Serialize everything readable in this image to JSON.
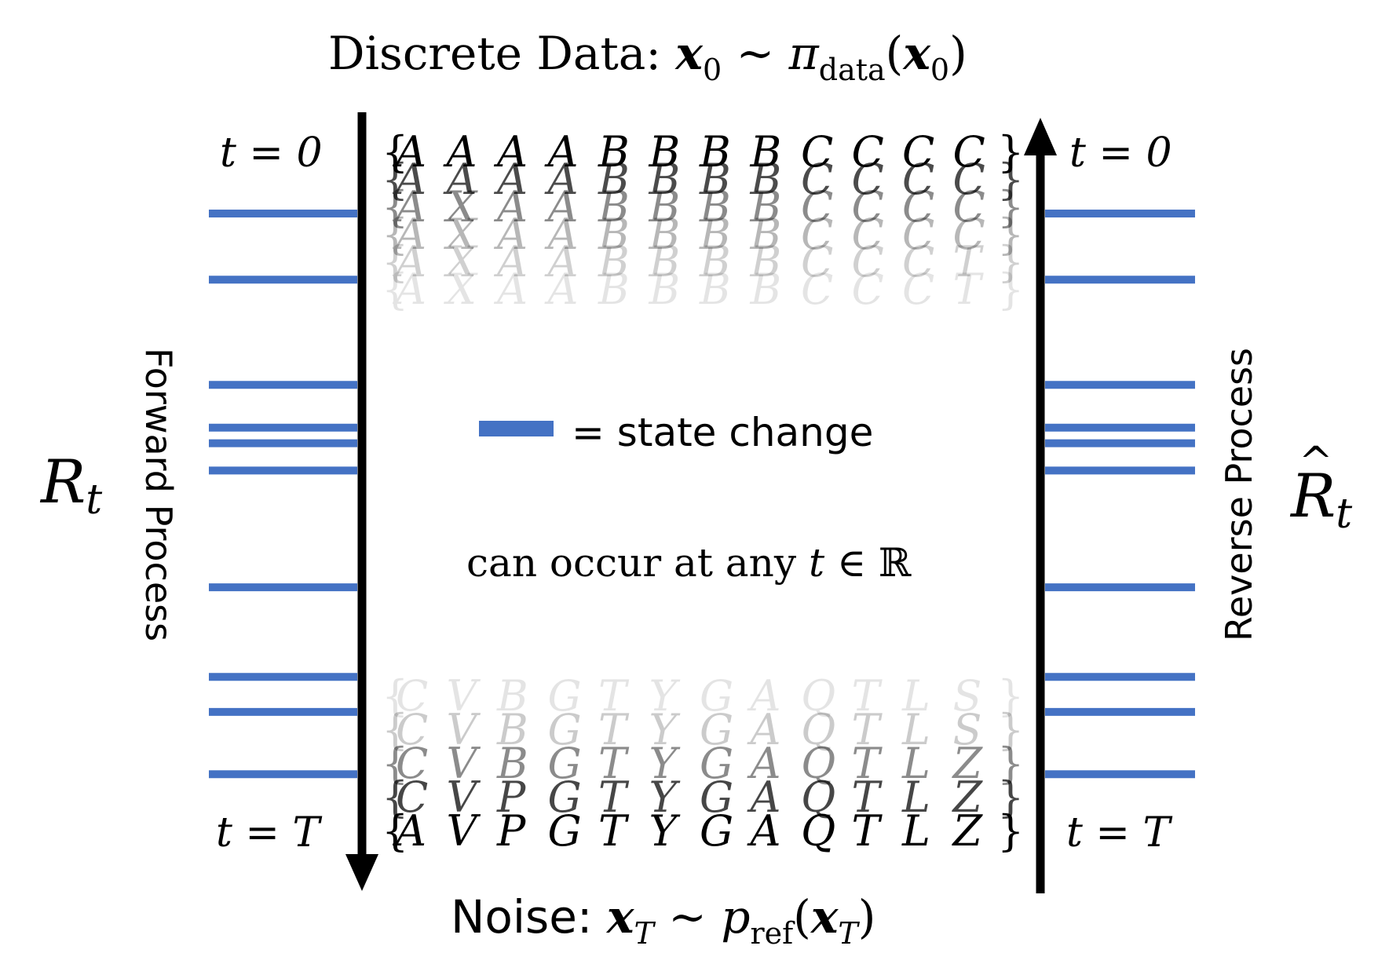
{
  "title": {
    "text": "Discrete Data: ",
    "x0": "x",
    "x0_sub": "0",
    "tilde": " ~ ",
    "pi": "π",
    "pi_sub": "data",
    "open": "(",
    "arg": "x",
    "arg_sub": "0",
    "close": ")"
  },
  "bottom_label": {
    "text": "Noise: ",
    "xT": "x",
    "xT_sub": "T",
    "tilde": " ~ ",
    "p": "p",
    "p_sub": "ref",
    "open": "(",
    "arg": "x",
    "arg_sub": "T",
    "close": ")"
  },
  "left": {
    "t0": "t = 0",
    "tT": "t = T",
    "rate": "R",
    "rate_sub": "t",
    "process": "Forward Process"
  },
  "right": {
    "t0": "t = 0",
    "tT": "t = T",
    "rate_hat": "^",
    "rate": "R",
    "rate_sub": "t",
    "process": "Reverse Process"
  },
  "legend": {
    "text": "= state change",
    "color": "#4472c4"
  },
  "caption": {
    "text": "can occur at any ",
    "t": "t",
    "rest": " ∈ ℝ"
  },
  "sequences_top": [
    {
      "letters": [
        "A",
        "A",
        "A",
        "A",
        "B",
        "B",
        "B",
        "B",
        "C",
        "C",
        "C",
        "C"
      ],
      "opacity": 1.0
    },
    {
      "letters": [
        "A",
        "A",
        "A",
        "A",
        "B",
        "B",
        "B",
        "B",
        "C",
        "C",
        "C",
        "C"
      ],
      "opacity": 0.7
    },
    {
      "letters": [
        "A",
        "X",
        "A",
        "A",
        "B",
        "B",
        "B",
        "B",
        "C",
        "C",
        "C",
        "C"
      ],
      "opacity": 0.45
    },
    {
      "letters": [
        "A",
        "X",
        "A",
        "A",
        "B",
        "B",
        "B",
        "B",
        "C",
        "C",
        "C",
        "C"
      ],
      "opacity": 0.28
    },
    {
      "letters": [
        "A",
        "X",
        "A",
        "A",
        "B",
        "B",
        "B",
        "B",
        "C",
        "C",
        "C",
        "T"
      ],
      "opacity": 0.18
    },
    {
      "letters": [
        "A",
        "X",
        "A",
        "A",
        "B",
        "B",
        "B",
        "B",
        "C",
        "C",
        "C",
        "T"
      ],
      "opacity": 0.1
    }
  ],
  "sequences_bottom": [
    {
      "letters": [
        "C",
        "V",
        "B",
        "G",
        "T",
        "Y",
        "G",
        "A",
        "Q",
        "T",
        "L",
        "S"
      ],
      "opacity": 0.1
    },
    {
      "letters": [
        "C",
        "V",
        "B",
        "G",
        "T",
        "Y",
        "G",
        "A",
        "Q",
        "T",
        "L",
        "S"
      ],
      "opacity": 0.2
    },
    {
      "letters": [
        "C",
        "V",
        "B",
        "G",
        "T",
        "Y",
        "G",
        "A",
        "Q",
        "T",
        "L",
        "Z"
      ],
      "opacity": 0.45
    },
    {
      "letters": [
        "C",
        "V",
        "P",
        "G",
        "T",
        "Y",
        "G",
        "A",
        "Q",
        "T",
        "L",
        "Z"
      ],
      "opacity": 0.72
    },
    {
      "letters": [
        "A",
        "V",
        "P",
        "G",
        "T",
        "Y",
        "G",
        "A",
        "Q",
        "T",
        "L",
        "Z"
      ],
      "opacity": 1.0
    }
  ],
  "state_change_times": [
    0.13,
    0.215,
    0.35,
    0.405,
    0.425,
    0.46,
    0.61,
    0.725,
    0.77,
    0.85
  ],
  "colors": {
    "line": "#4472c4",
    "arrow": "#000000"
  }
}
